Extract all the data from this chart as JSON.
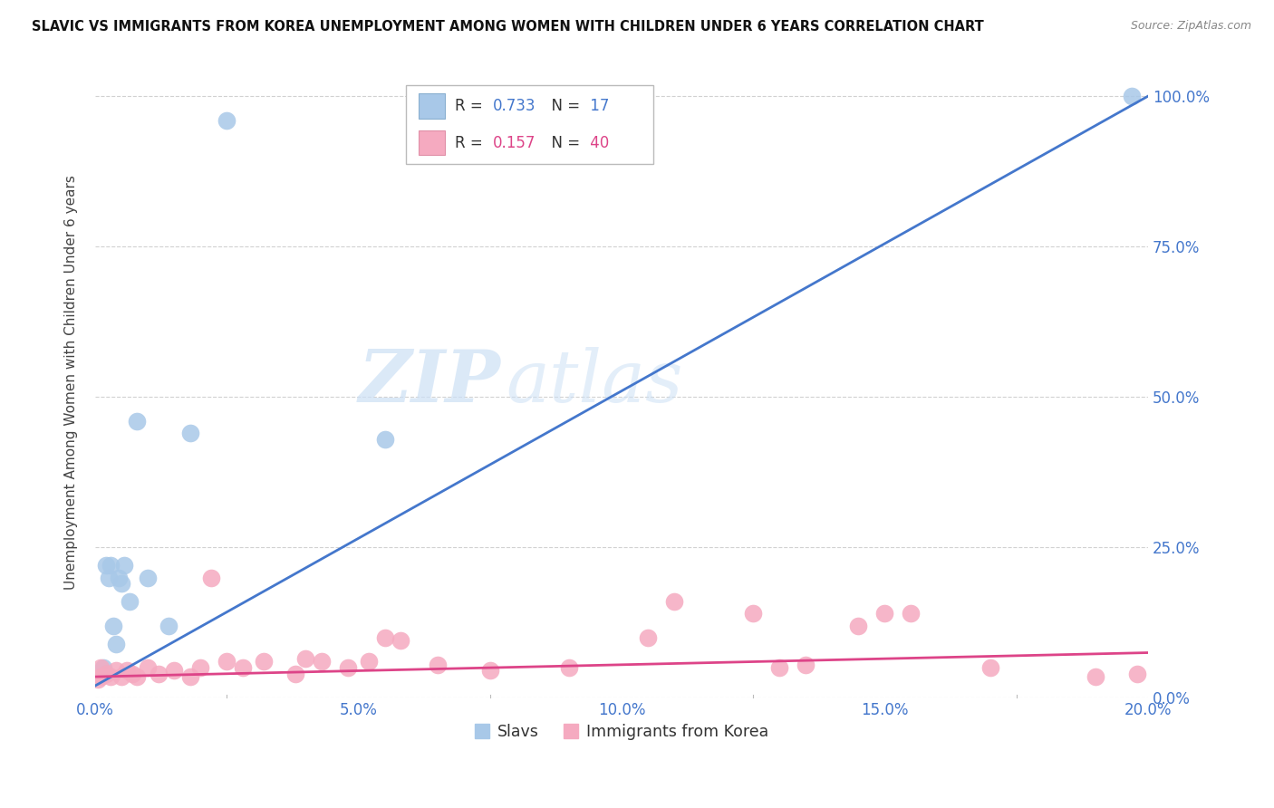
{
  "title": "SLAVIC VS IMMIGRANTS FROM KOREA UNEMPLOYMENT AMONG WOMEN WITH CHILDREN UNDER 6 YEARS CORRELATION CHART",
  "source": "Source: ZipAtlas.com",
  "ylabel": "Unemployment Among Women with Children Under 6 years",
  "xlim": [
    0.0,
    20.0
  ],
  "ylim": [
    0.0,
    105.0
  ],
  "xlabel_vals": [
    0.0,
    5.0,
    10.0,
    15.0,
    20.0
  ],
  "ylabel_vals": [
    0.0,
    25.0,
    50.0,
    75.0,
    100.0
  ],
  "slavs_R": 0.733,
  "slavs_N": 17,
  "korea_R": 0.157,
  "korea_N": 40,
  "slavs_color": "#a8c8e8",
  "slavs_line_color": "#4477cc",
  "korea_color": "#f5aac0",
  "korea_line_color": "#dd4488",
  "watermark_zip": "ZIP",
  "watermark_atlas": "atlas",
  "background_color": "#ffffff",
  "slavs_x": [
    0.15,
    0.2,
    0.25,
    0.3,
    0.35,
    0.4,
    0.45,
    0.5,
    0.55,
    0.65,
    0.8,
    1.0,
    1.4,
    1.8,
    2.5,
    5.5,
    19.7
  ],
  "slavs_y": [
    5.0,
    22.0,
    20.0,
    22.0,
    12.0,
    9.0,
    20.0,
    19.0,
    22.0,
    16.0,
    46.0,
    20.0,
    12.0,
    44.0,
    96.0,
    43.0,
    100.0
  ],
  "korea_x": [
    0.05,
    0.1,
    0.1,
    0.2,
    0.3,
    0.4,
    0.5,
    0.6,
    0.7,
    0.8,
    1.0,
    1.2,
    1.5,
    1.8,
    2.0,
    2.2,
    2.5,
    2.8,
    3.2,
    3.8,
    4.0,
    4.3,
    4.8,
    5.2,
    5.5,
    5.8,
    6.5,
    7.5,
    9.0,
    10.5,
    11.0,
    12.5,
    13.0,
    13.5,
    14.5,
    15.0,
    15.5,
    17.0,
    19.0,
    19.8
  ],
  "korea_y": [
    3.0,
    3.5,
    5.0,
    4.0,
    3.5,
    4.5,
    3.5,
    4.5,
    4.0,
    3.5,
    5.0,
    4.0,
    4.5,
    3.5,
    5.0,
    20.0,
    6.0,
    5.0,
    6.0,
    4.0,
    6.5,
    6.0,
    5.0,
    6.0,
    10.0,
    9.5,
    5.5,
    4.5,
    5.0,
    10.0,
    16.0,
    14.0,
    5.0,
    5.5,
    12.0,
    14.0,
    14.0,
    5.0,
    3.5,
    4.0
  ],
  "slavs_trend_x": [
    0.0,
    20.0
  ],
  "slavs_trend_y": [
    2.0,
    100.0
  ],
  "korea_trend_x": [
    0.0,
    20.0
  ],
  "korea_trend_y": [
    3.5,
    7.5
  ]
}
